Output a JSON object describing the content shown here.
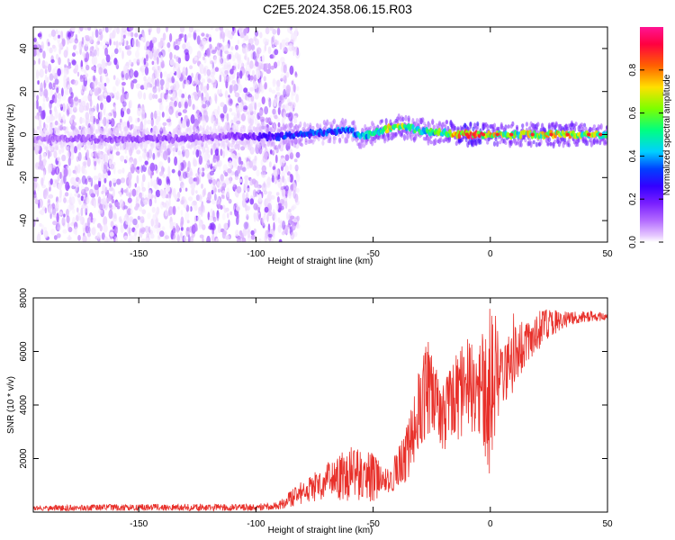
{
  "title": "C2E5.2024.358.06.15.R03",
  "chart_data": [
    {
      "type": "heatmap",
      "xlabel": "Height of straight line (km)",
      "ylabel": "Frequency (Hz)",
      "xlim": [
        -195,
        50
      ],
      "ylim": [
        -50,
        50
      ],
      "xticks": [
        -150,
        -100,
        -50,
        0,
        50
      ],
      "yticks": [
        -40,
        -20,
        0,
        20,
        40
      ],
      "colorbar": {
        "label": "Normalized spectral amplitude",
        "range": [
          0,
          1
        ],
        "ticks": [
          0.0,
          0.2,
          0.4,
          0.6,
          0.8
        ],
        "colors": [
          "#ffffff",
          "#e6c8ff",
          "#b36bff",
          "#7a1fff",
          "#3300ff",
          "#0040ff",
          "#00d0ff",
          "#00ff80",
          "#7cff00",
          "#ffe000",
          "#ff6000",
          "#ff0040",
          "#ff1493"
        ]
      },
      "ridge": {
        "x": [
          -195,
          -170,
          -150,
          -130,
          -115,
          -100,
          -90,
          -80,
          -70,
          -60,
          -55,
          -50,
          -45,
          -40,
          -35,
          -30,
          -25,
          -20,
          -10,
          0,
          10,
          20,
          30,
          40,
          50
        ],
        "frequency": [
          -2,
          -2,
          -2,
          -2,
          -1,
          -1,
          -1,
          0,
          1,
          2,
          -1,
          1,
          2,
          4,
          3,
          2,
          1,
          1,
          0,
          0,
          0,
          0,
          0,
          0,
          0
        ],
        "amplitude": [
          0.15,
          0.18,
          0.2,
          0.2,
          0.2,
          0.25,
          0.35,
          0.4,
          0.4,
          0.45,
          0.5,
          0.6,
          0.65,
          0.65,
          0.6,
          0.55,
          0.55,
          0.6,
          0.85,
          0.75,
          0.6,
          0.7,
          0.7,
          0.65,
          0.65
        ]
      },
      "noise_region_x": [
        -195,
        -90
      ]
    },
    {
      "type": "line",
      "xlabel": "Height of straight line (km)",
      "ylabel": "SNR (10 * v/v)",
      "xlim": [
        -195,
        50
      ],
      "ylim": [
        0,
        8000
      ],
      "xticks": [
        -150,
        -100,
        -50,
        0,
        50
      ],
      "yticks": [
        2000,
        4000,
        6000,
        8000
      ],
      "color": "#e8302a",
      "envelope": {
        "x": [
          -195,
          -150,
          -100,
          -90,
          -80,
          -70,
          -60,
          -50,
          -45,
          -40,
          -35,
          -30,
          -27,
          -24,
          -20,
          -15,
          -10,
          -5,
          0,
          5,
          10,
          15,
          20,
          25,
          30,
          35,
          40,
          45,
          50
        ],
        "low": [
          50,
          50,
          50,
          100,
          300,
          500,
          400,
          400,
          700,
          800,
          1200,
          2500,
          2800,
          3100,
          2000,
          2500,
          3000,
          3000,
          1300,
          4000,
          4500,
          5500,
          6000,
          6500,
          6800,
          7000,
          7100,
          7100,
          7200
        ],
        "high": [
          250,
          300,
          300,
          400,
          1200,
          1800,
          2500,
          2200,
          1600,
          2200,
          3500,
          5500,
          6700,
          5500,
          4800,
          5800,
          6500,
          6000,
          8000,
          6500,
          7500,
          7000,
          7500,
          7600,
          7500,
          7500,
          7500,
          7500,
          7400
        ]
      }
    }
  ]
}
